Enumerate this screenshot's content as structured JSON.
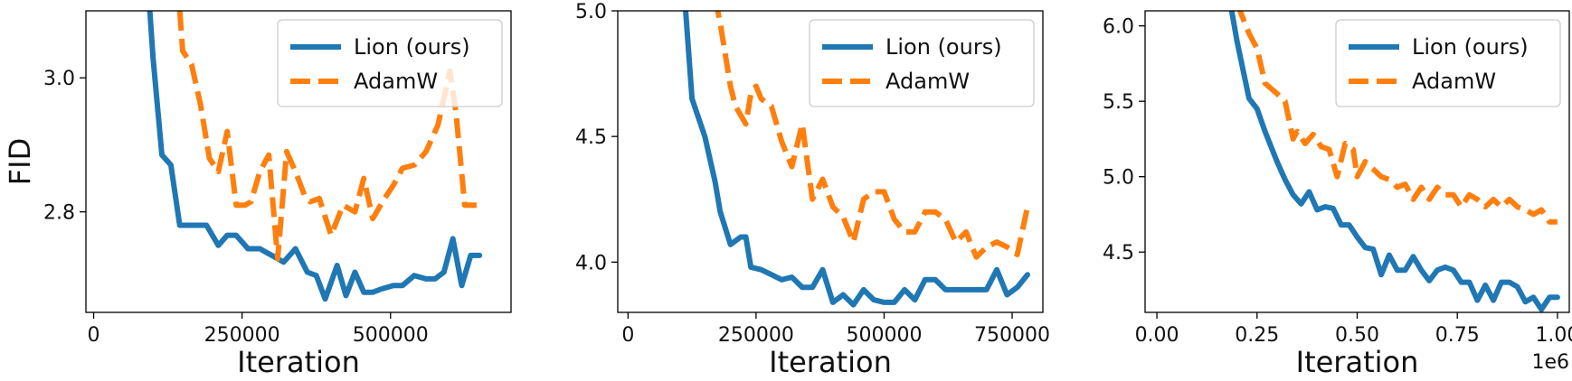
{
  "chart_data": [
    {
      "type": "line",
      "title": "",
      "xlabel": "Iteration",
      "ylabel": "FID",
      "xlim": [
        -13000,
        703000
      ],
      "ylim": [
        2.65,
        3.1
      ],
      "xticks": [
        0,
        250000,
        500000
      ],
      "xtick_labels": [
        "0",
        "250000",
        "500000"
      ],
      "yticks": [
        2.8,
        3.0
      ],
      "ytick_labels": [
        "2.8",
        "3.0"
      ],
      "x_offset_label": "",
      "legend": {
        "position": "top-right",
        "entries": [
          "Lion (ours)",
          "AdamW"
        ]
      },
      "grid": false,
      "series": [
        {
          "name": "Lion (ours)",
          "color": "#1f77b4",
          "style": "solid",
          "x": [
            90000,
            100000,
            115000,
            130000,
            145000,
            160000,
            175000,
            190000,
            210000,
            225000,
            240000,
            260000,
            280000,
            290000,
            300000,
            320000,
            340000,
            360000,
            375000,
            390000,
            410000,
            425000,
            440000,
            455000,
            470000,
            485000,
            505000,
            520000,
            540000,
            560000,
            575000,
            590000,
            605000,
            620000,
            635000,
            650000
          ],
          "y": [
            3.16,
            3.03,
            2.885,
            2.87,
            2.78,
            2.78,
            2.78,
            2.78,
            2.75,
            2.765,
            2.765,
            2.745,
            2.745,
            2.74,
            2.735,
            2.725,
            2.745,
            2.71,
            2.705,
            2.67,
            2.72,
            2.675,
            2.71,
            2.68,
            2.68,
            2.685,
            2.69,
            2.69,
            2.705,
            2.7,
            2.7,
            2.71,
            2.76,
            2.69,
            2.735,
            2.735
          ]
        },
        {
          "name": "AdamW",
          "color": "#ff7f0e",
          "style": "dashed",
          "x": [
            145000,
            150000,
            165000,
            180000,
            195000,
            210000,
            225000,
            240000,
            255000,
            265000,
            280000,
            295000,
            310000,
            325000,
            340000,
            355000,
            365000,
            380000,
            400000,
            420000,
            440000,
            455000,
            470000,
            490000,
            505000,
            520000,
            540000,
            560000,
            580000,
            600000,
            610000,
            625000,
            645000
          ],
          "y": [
            3.1,
            3.04,
            3.02,
            2.96,
            2.88,
            2.86,
            2.92,
            2.81,
            2.81,
            2.815,
            2.86,
            2.885,
            2.73,
            2.89,
            2.86,
            2.825,
            2.815,
            2.82,
            2.765,
            2.81,
            2.8,
            2.85,
            2.79,
            2.82,
            2.84,
            2.865,
            2.87,
            2.89,
            2.93,
            3.01,
            2.95,
            2.81,
            2.81
          ]
        }
      ]
    },
    {
      "type": "line",
      "title": "",
      "xlabel": "Iteration",
      "ylabel": "",
      "xlim": [
        -20000,
        810000
      ],
      "ylim": [
        3.8,
        5.0
      ],
      "xticks": [
        0,
        250000,
        500000,
        750000
      ],
      "xtick_labels": [
        "0",
        "250000",
        "500000",
        "750000"
      ],
      "yticks": [
        4.0,
        4.5,
        5.0
      ],
      "ytick_labels": [
        "4.0",
        "4.5",
        "5.0"
      ],
      "x_offset_label": "",
      "legend": {
        "position": "top-right",
        "entries": [
          "Lion (ours)",
          "AdamW"
        ]
      },
      "grid": false,
      "series": [
        {
          "name": "Lion (ours)",
          "color": "#1f77b4",
          "style": "solid",
          "x": [
            100000,
            125000,
            150000,
            170000,
            180000,
            200000,
            220000,
            230000,
            240000,
            260000,
            280000,
            300000,
            320000,
            340000,
            360000,
            380000,
            400000,
            420000,
            440000,
            460000,
            480000,
            500000,
            520000,
            540000,
            560000,
            580000,
            600000,
            620000,
            640000,
            660000,
            680000,
            700000,
            720000,
            740000,
            760000,
            780000
          ],
          "y": [
            5.35,
            4.65,
            4.5,
            4.32,
            4.2,
            4.07,
            4.1,
            4.1,
            3.98,
            3.97,
            3.95,
            3.93,
            3.94,
            3.9,
            3.9,
            3.97,
            3.84,
            3.87,
            3.83,
            3.89,
            3.85,
            3.84,
            3.84,
            3.89,
            3.85,
            3.93,
            3.93,
            3.89,
            3.89,
            3.89,
            3.89,
            3.89,
            3.97,
            3.87,
            3.9,
            3.95
          ]
        },
        {
          "name": "AdamW",
          "color": "#ff7f0e",
          "style": "dashed",
          "x": [
            170000,
            180000,
            200000,
            210000,
            230000,
            240000,
            250000,
            260000,
            280000,
            300000,
            320000,
            340000,
            360000,
            380000,
            400000,
            420000,
            440000,
            460000,
            480000,
            500000,
            520000,
            540000,
            560000,
            580000,
            600000,
            620000,
            640000,
            660000,
            680000,
            700000,
            720000,
            740000,
            760000,
            780000
          ],
          "y": [
            5.05,
            4.95,
            4.7,
            4.62,
            4.55,
            4.67,
            4.7,
            4.65,
            4.62,
            4.48,
            4.38,
            4.55,
            4.25,
            4.33,
            4.22,
            4.18,
            4.08,
            4.25,
            4.28,
            4.28,
            4.17,
            4.12,
            4.12,
            4.2,
            4.2,
            4.17,
            4.08,
            4.12,
            4.02,
            4.06,
            4.08,
            4.06,
            4.03,
            4.22
          ]
        }
      ]
    },
    {
      "type": "line",
      "title": "",
      "xlabel": "Iteration",
      "ylabel": "",
      "xlim": [
        -0.0295,
        1.0295
      ],
      "ylim": [
        4.1,
        6.1
      ],
      "xticks": [
        0.0,
        0.25,
        0.5,
        0.75,
        1.0
      ],
      "xtick_labels": [
        "0.00",
        "0.25",
        "0.50",
        "0.75",
        "1.00"
      ],
      "yticks": [
        4.5,
        5.0,
        5.5,
        6.0
      ],
      "ytick_labels": [
        "4.5",
        "5.0",
        "5.5",
        "6.0"
      ],
      "x_offset_label": "1e6",
      "legend": {
        "position": "top-right",
        "entries": [
          "Lion (ours)",
          "AdamW"
        ]
      },
      "grid": false,
      "series": [
        {
          "name": "Lion (ours)",
          "color": "#1f77b4",
          "style": "solid",
          "x": [
            0.18,
            0.2,
            0.23,
            0.25,
            0.27,
            0.3,
            0.32,
            0.34,
            0.36,
            0.38,
            0.4,
            0.42,
            0.44,
            0.46,
            0.48,
            0.5,
            0.52,
            0.54,
            0.56,
            0.58,
            0.6,
            0.62,
            0.64,
            0.66,
            0.68,
            0.7,
            0.72,
            0.74,
            0.76,
            0.78,
            0.8,
            0.82,
            0.84,
            0.86,
            0.88,
            0.9,
            0.92,
            0.94,
            0.96,
            0.98,
            1.0
          ],
          "y": [
            6.2,
            5.9,
            5.52,
            5.45,
            5.3,
            5.1,
            4.98,
            4.88,
            4.82,
            4.9,
            4.78,
            4.8,
            4.79,
            4.68,
            4.68,
            4.6,
            4.53,
            4.52,
            4.35,
            4.48,
            4.38,
            4.38,
            4.47,
            4.38,
            4.31,
            4.38,
            4.4,
            4.38,
            4.3,
            4.3,
            4.18,
            4.28,
            4.18,
            4.3,
            4.3,
            4.27,
            4.17,
            4.2,
            4.12,
            4.2,
            4.2
          ]
        },
        {
          "name": "AdamW",
          "color": "#ff7f0e",
          "style": "dashed",
          "x": [
            0.2,
            0.23,
            0.25,
            0.27,
            0.3,
            0.32,
            0.34,
            0.35,
            0.37,
            0.39,
            0.41,
            0.43,
            0.45,
            0.47,
            0.49,
            0.5,
            0.52,
            0.54,
            0.56,
            0.58,
            0.6,
            0.62,
            0.64,
            0.66,
            0.68,
            0.7,
            0.72,
            0.74,
            0.76,
            0.78,
            0.8,
            0.82,
            0.84,
            0.86,
            0.88,
            0.9,
            0.92,
            0.94,
            0.96,
            0.98,
            1.0
          ],
          "y": [
            6.15,
            5.95,
            5.85,
            5.62,
            5.55,
            5.5,
            5.25,
            5.3,
            5.22,
            5.28,
            5.2,
            5.18,
            5.0,
            5.22,
            5.18,
            5.0,
            5.1,
            5.05,
            5.0,
            4.98,
            4.93,
            4.95,
            4.85,
            4.93,
            4.85,
            4.93,
            4.88,
            4.88,
            4.8,
            4.88,
            4.85,
            4.8,
            4.85,
            4.8,
            4.85,
            4.8,
            4.78,
            4.75,
            4.78,
            4.7,
            4.7
          ]
        }
      ]
    }
  ]
}
